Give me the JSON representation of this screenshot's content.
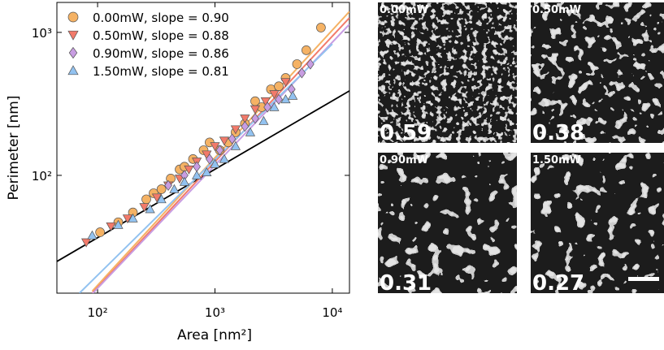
{
  "chart_data": {
    "type": "scatter",
    "log_x": true,
    "log_y": true,
    "x_label": "Area [nm²]",
    "y_label": "Perimeter [nm]",
    "xlim": [
      45,
      14000
    ],
    "ylim": [
      15,
      1620
    ],
    "xticks": [
      {
        "value": 100,
        "label": "10²"
      },
      {
        "value": 1000,
        "label": "10³"
      },
      {
        "value": 10000,
        "label": "10⁴"
      }
    ],
    "yticks": [
      {
        "value": 100,
        "label": "10²"
      },
      {
        "value": 1000,
        "label": "10³"
      }
    ],
    "legend": "upper left",
    "reference_line": {
      "color": "#000000",
      "x": [
        45,
        14000
      ],
      "y": [
        25,
        390
      ]
    },
    "series": [
      {
        "name": "0.00mW, slope = 0.90",
        "marker": "circle",
        "color": "#f5b264",
        "x": [
          105,
          150,
          200,
          260,
          300,
          350,
          420,
          500,
          550,
          650,
          800,
          900,
          1100,
          1300,
          1500,
          1800,
          2200,
          2500,
          3000,
          3500,
          4000,
          5000,
          6000,
          8000
        ],
        "values": [
          40,
          47,
          55,
          68,
          75,
          80,
          95,
          110,
          115,
          130,
          150,
          170,
          150,
          170,
          200,
          230,
          330,
          300,
          400,
          420,
          480,
          600,
          750,
          1080
        ],
        "fit_x": [
          90,
          14000
        ],
        "fit_y": [
          15.5,
          1400
        ]
      },
      {
        "name": "0.50mW, slope = 0.88",
        "marker": "triangle-down",
        "color": "#f27a6a",
        "x": [
          80,
          130,
          180,
          250,
          320,
          400,
          500,
          600,
          700,
          850,
          1000,
          1200,
          1500,
          1800,
          2200,
          2700,
          3200,
          4000
        ],
        "values": [
          34,
          44,
          50,
          60,
          70,
          85,
          95,
          110,
          125,
          140,
          160,
          175,
          210,
          250,
          290,
          330,
          370,
          450
        ],
        "fit_x": [
          90,
          14000
        ],
        "fit_y": [
          15,
          1265
        ]
      },
      {
        "name": "0.90mW, slope = 0.86",
        "marker": "diamond",
        "color": "#c89de2",
        "x": [
          400,
          550,
          700,
          900,
          1100,
          1400,
          1800,
          2200,
          2800,
          3500,
          4500,
          5500,
          6500
        ],
        "values": [
          85,
          100,
          115,
          130,
          150,
          180,
          220,
          250,
          300,
          340,
          400,
          520,
          600
        ],
        "fit_x": [
          80,
          14000
        ],
        "fit_y": [
          13.4,
          1140
        ]
      },
      {
        "name": "1.50mW, slope = 0.81",
        "marker": "triangle-up",
        "color": "#92c2f0",
        "x": [
          90,
          150,
          200,
          280,
          350,
          450,
          550,
          700,
          850,
          1000,
          1200,
          1500,
          2000,
          2600,
          3200,
          4000,
          4600
        ],
        "values": [
          38,
          45,
          50,
          58,
          68,
          80,
          90,
          100,
          105,
          120,
          130,
          160,
          200,
          240,
          300,
          340,
          360
        ],
        "fit_x": [
          70,
          10000
        ],
        "fit_y": [
          15,
          830
        ]
      }
    ]
  },
  "panels": [
    {
      "power": "0.00mW",
      "value": "0.59"
    },
    {
      "power": "0.50mW",
      "value": "0.38"
    },
    {
      "power": "0.90mW",
      "value": "0.31"
    },
    {
      "power": "1.50mW",
      "value": "0.27"
    }
  ]
}
